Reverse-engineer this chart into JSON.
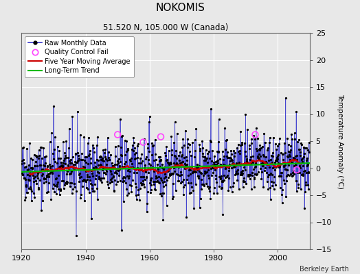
{
  "title": "NOKOMIS",
  "subtitle": "51.520 N, 105.000 W (Canada)",
  "ylabel": "Temperature Anomaly (°C)",
  "credit": "Berkeley Earth",
  "xlim": [
    1920,
    2010
  ],
  "ylim": [
    -15,
    25
  ],
  "yticks": [
    -15,
    -10,
    -5,
    0,
    5,
    10,
    15,
    20,
    25
  ],
  "xticks": [
    1920,
    1940,
    1960,
    1980,
    2000
  ],
  "fig_bg_color": "#e8e8e8",
  "plot_bg_color": "#e8e8e8",
  "grid_color": "#ffffff",
  "raw_line_color": "#3333cc",
  "raw_dot_color": "#000000",
  "qc_fail_color": "#ff44ff",
  "moving_avg_color": "#cc0000",
  "trend_color": "#00bb00",
  "seed": 42,
  "n_years": 90,
  "start_year": 1920,
  "noise_std": 2.8,
  "trend_slope": 0.012
}
